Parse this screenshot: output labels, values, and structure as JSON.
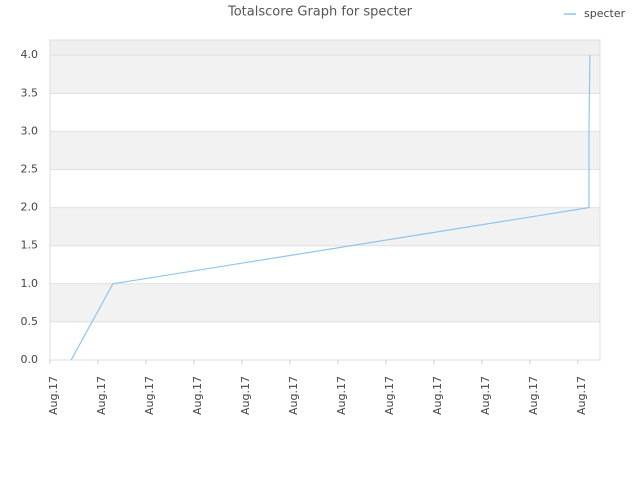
{
  "chart_data": {
    "type": "line",
    "title": "Totalscore Graph for specter",
    "series": [
      {
        "name": "specter",
        "color": "#90c4ee",
        "x": [
          0.44,
          1.31,
          11.23,
          11.23,
          11.25
        ],
        "values": [
          0,
          1,
          2,
          3,
          4
        ]
      }
    ],
    "xlim": [
      0,
      11.46
    ],
    "xticks": [
      {
        "value": 0,
        "label": "Aug.17"
      },
      {
        "value": 1,
        "label": "Aug.17"
      },
      {
        "value": 2,
        "label": "Aug.17"
      },
      {
        "value": 3,
        "label": "Aug.17"
      },
      {
        "value": 4,
        "label": "Aug.17"
      },
      {
        "value": 5,
        "label": "Aug.17"
      },
      {
        "value": 6,
        "label": "Aug.17"
      },
      {
        "value": 7,
        "label": "Aug.17"
      },
      {
        "value": 8,
        "label": "Aug.17"
      },
      {
        "value": 9,
        "label": "Aug.17"
      },
      {
        "value": 10,
        "label": "Aug.17"
      },
      {
        "value": 11,
        "label": "Aug.17"
      }
    ],
    "ylim": [
      0,
      4.2
    ],
    "yticks": [
      {
        "value": 0,
        "label": "0.0"
      },
      {
        "value": 0.5,
        "label": "0.5"
      },
      {
        "value": 1,
        "label": "1.0"
      },
      {
        "value": 1.5,
        "label": "1.5"
      },
      {
        "value": 2,
        "label": "2.0"
      },
      {
        "value": 2.5,
        "label": "2.5"
      },
      {
        "value": 3,
        "label": "3.0"
      },
      {
        "value": 3.5,
        "label": "3.5"
      },
      {
        "value": 4,
        "label": "4.0"
      }
    ],
    "grid": true,
    "legend": "top-right"
  }
}
